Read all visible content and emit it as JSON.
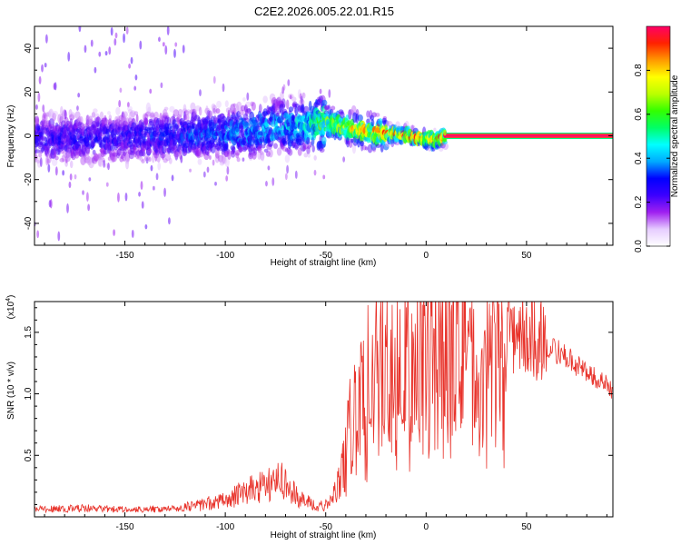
{
  "title": "C2E2.2026.005.22.01.R15",
  "chart_data": [
    {
      "type": "heatmap",
      "name": "spectrogram",
      "xlabel": "Height of straight line (km)",
      "ylabel": "Frequency (Hz)",
      "xlim": [
        -195,
        93
      ],
      "ylim": [
        -50,
        50
      ],
      "x_ticks": [
        -150,
        -100,
        -50,
        0,
        50
      ],
      "y_ticks": [
        40,
        20,
        0,
        -20,
        -40
      ],
      "colorbar": {
        "label": "Normalized spectral amplitude",
        "range": [
          0,
          1
        ],
        "ticks": [
          0.0,
          0.2,
          0.4,
          0.6,
          0.8
        ],
        "tick_labels": [
          "0.0",
          "0.2",
          "0.4",
          "0.6",
          "0.8"
        ],
        "colormap": [
          "#ffffff",
          "#e6ccff",
          "#a020f0",
          "#3c00ff",
          "#0000ff",
          "#00aaff",
          "#00ffff",
          "#00ff66",
          "#33ff00",
          "#bbff00",
          "#ffff00",
          "#ff9900",
          "#ff2200",
          "#ff0066"
        ]
      },
      "ridge": {
        "description_points": [
          {
            "x": -195,
            "y": -1,
            "amp": 0.3
          },
          {
            "x": -150,
            "y": -1,
            "amp": 0.3
          },
          {
            "x": -120,
            "y": 0,
            "amp": 0.35
          },
          {
            "x": -100,
            "y": 1,
            "amp": 0.4
          },
          {
            "x": -80,
            "y": 3,
            "amp": 0.45
          },
          {
            "x": -60,
            "y": 5,
            "amp": 0.5
          },
          {
            "x": -50,
            "y": 6,
            "amp": 0.7
          },
          {
            "x": -40,
            "y": 4,
            "amp": 0.8
          },
          {
            "x": -30,
            "y": 2,
            "amp": 0.85
          },
          {
            "x": -20,
            "y": 1,
            "amp": 0.9
          },
          {
            "x": -10,
            "y": 0,
            "amp": 0.95
          },
          {
            "x": 5,
            "y": -2,
            "amp": 0.95
          },
          {
            "x": 10,
            "y": 0,
            "amp": 1.0
          },
          {
            "x": 93,
            "y": 0,
            "amp": 1.0
          }
        ]
      }
    },
    {
      "type": "line",
      "name": "snr",
      "xlabel": "Height of straight line (km)",
      "ylabel": "SNR (10 * v/v)",
      "y_multiplier": "(x10",
      "y_multiplier_exp": "4",
      "y_multiplier_close": ")",
      "xlim": [
        -195,
        93
      ],
      "ylim": [
        0,
        17500
      ],
      "x_ticks": [
        -150,
        -100,
        -50,
        0,
        50
      ],
      "y_ticks": [
        5000,
        10000,
        15000
      ],
      "y_tick_labels": [
        "0.5",
        "1.0",
        "1.5"
      ],
      "color": "#e8322a",
      "envelope": [
        {
          "x": -195,
          "y": 600
        },
        {
          "x": -170,
          "y": 700
        },
        {
          "x": -150,
          "y": 600
        },
        {
          "x": -130,
          "y": 650
        },
        {
          "x": -115,
          "y": 900
        },
        {
          "x": -100,
          "y": 1400
        },
        {
          "x": -90,
          "y": 2000
        },
        {
          "x": -80,
          "y": 2600
        },
        {
          "x": -72,
          "y": 2900
        },
        {
          "x": -65,
          "y": 1800
        },
        {
          "x": -55,
          "y": 800
        },
        {
          "x": -48,
          "y": 1000
        },
        {
          "x": -42,
          "y": 3500
        },
        {
          "x": -38,
          "y": 8000
        },
        {
          "x": -30,
          "y": 11000
        },
        {
          "x": -20,
          "y": 12500
        },
        {
          "x": -10,
          "y": 12800
        },
        {
          "x": 0,
          "y": 13500
        },
        {
          "x": 10,
          "y": 14000
        },
        {
          "x": 20,
          "y": 14300
        },
        {
          "x": 30,
          "y": 14800
        },
        {
          "x": 40,
          "y": 15600
        },
        {
          "x": 48,
          "y": 15000
        },
        {
          "x": 55,
          "y": 14400
        },
        {
          "x": 65,
          "y": 13500
        },
        {
          "x": 75,
          "y": 12300
        },
        {
          "x": 85,
          "y": 11300
        },
        {
          "x": 93,
          "y": 10200
        }
      ]
    }
  ]
}
